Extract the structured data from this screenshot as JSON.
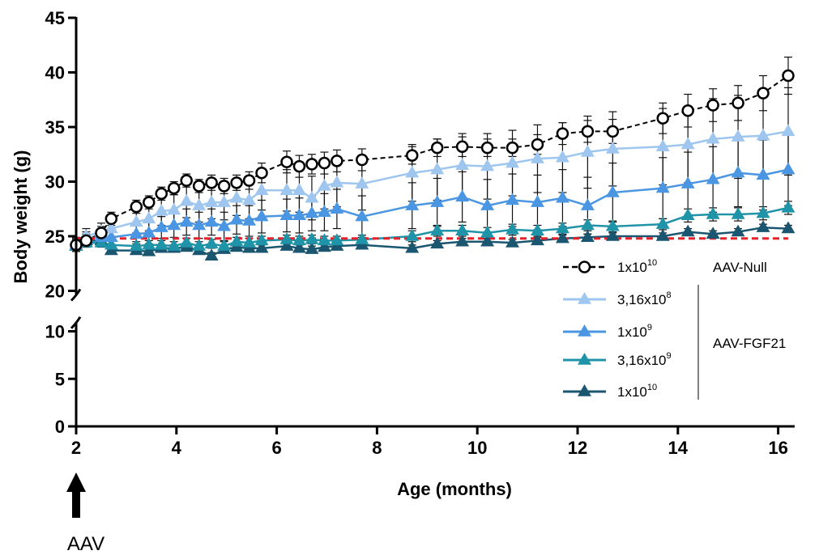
{
  "chart_data": {
    "type": "line",
    "xlabel": "Age (months)",
    "ylabel": "Body weight (g)",
    "xlim": [
      2,
      16.5
    ],
    "x_ticks": [
      "2",
      "4",
      "6",
      "8",
      "10",
      "12",
      "14",
      "16"
    ],
    "y_ticks_lower": [
      "0",
      "5",
      "10"
    ],
    "y_ticks_upper": [
      "20",
      "25",
      "30",
      "35",
      "40",
      "45"
    ],
    "ylim_lower": [
      0,
      11
    ],
    "ylim_upper": [
      20,
      45
    ],
    "y_axis_break": [
      11,
      20
    ],
    "grid": false,
    "legend": {
      "placement": "bottom-right",
      "groups": [
        {
          "label": "AAV-Null",
          "entries": [
            0
          ]
        },
        {
          "label": "AAV-FGF21",
          "entries": [
            1,
            2,
            3,
            4
          ]
        }
      ]
    },
    "annotation": {
      "text": "AAV",
      "at_x": 2,
      "marker": "up-arrow"
    },
    "baseline": {
      "y": 24.8,
      "color": "#e8202a",
      "style": "dashed"
    },
    "series": [
      {
        "name": "1x10^10",
        "name_base": "1x10",
        "name_exp": "10",
        "color": "#000000",
        "marker": "circle-open",
        "dash": "dashed",
        "x": [
          2,
          2.2,
          2.5,
          2.7,
          3.2,
          3.45,
          3.7,
          3.95,
          4.2,
          4.45,
          4.7,
          4.95,
          5.2,
          5.45,
          5.7,
          6.2,
          6.45,
          6.7,
          6.95,
          7.2,
          7.7,
          8.7,
          9.2,
          9.7,
          10.2,
          10.7,
          11.2,
          11.7,
          12.2,
          12.7,
          13.7,
          14.2,
          14.7,
          15.2,
          15.7,
          16.2
        ],
        "y": [
          24.2,
          24.6,
          25.3,
          26.6,
          27.7,
          28.1,
          28.9,
          29.4,
          30.1,
          29.6,
          29.9,
          29.6,
          29.9,
          30.1,
          30.8,
          31.8,
          31.4,
          31.6,
          31.7,
          31.9,
          32.0,
          32.4,
          33.1,
          33.2,
          33.1,
          33.1,
          33.4,
          34.4,
          34.6,
          34.6,
          35.8,
          36.5,
          37.0,
          37.2,
          38.1,
          39.7
        ],
        "err": [
          0.6,
          0.6,
          0.6,
          0.6,
          0.6,
          0.6,
          0.6,
          0.6,
          0.6,
          0.6,
          0.7,
          0.7,
          0.7,
          0.8,
          0.9,
          1.0,
          1.0,
          0.9,
          1.0,
          1.0,
          1.0,
          0.8,
          0.8,
          0.9,
          0.8,
          0.8,
          0.9,
          1.0,
          1.0,
          1.1,
          1.4,
          1.5,
          1.5,
          1.6,
          1.6,
          1.7
        ]
      },
      {
        "name": "3,16x10^8",
        "name_base": "3,16x10",
        "name_exp": "8",
        "color": "#9ec6ef",
        "marker": "triangle",
        "dash": "solid",
        "x": [
          2,
          2.2,
          2.5,
          2.7,
          3.2,
          3.45,
          3.7,
          3.95,
          4.2,
          4.45,
          4.7,
          4.95,
          5.2,
          5.45,
          5.7,
          6.2,
          6.45,
          6.7,
          6.95,
          7.2,
          7.7,
          8.7,
          9.2,
          9.7,
          10.2,
          10.7,
          11.2,
          11.7,
          12.2,
          12.7,
          13.7,
          14.2,
          14.7,
          15.2,
          15.7,
          16.2
        ],
        "y": [
          24.3,
          25.0,
          25.4,
          25.7,
          26.3,
          26.6,
          27.3,
          27.4,
          28.2,
          27.8,
          28.1,
          28.1,
          28.5,
          28.3,
          29.2,
          29.2,
          29.2,
          28.5,
          29.6,
          29.9,
          29.8,
          30.8,
          31.1,
          31.5,
          31.4,
          31.7,
          32.1,
          32.2,
          32.7,
          33.0,
          33.2,
          33.4,
          33.9,
          34.1,
          34.2,
          34.6
        ],
        "err": [
          0.6,
          0.7,
          0.8,
          0.9,
          1.0,
          1.1,
          1.3,
          1.4,
          1.5,
          1.5,
          1.5,
          1.6,
          1.6,
          1.7,
          1.8,
          1.9,
          2.0,
          2.0,
          2.1,
          2.2,
          2.4,
          2.6,
          2.8,
          2.9,
          3.0,
          3.0,
          3.1,
          3.2,
          3.3,
          3.4,
          3.5,
          3.5,
          3.7,
          3.8,
          3.9,
          4.0
        ]
      },
      {
        "name": "1x10^9",
        "name_base": "1x10",
        "name_exp": "9",
        "color": "#4a96e2",
        "marker": "triangle",
        "dash": "solid",
        "x": [
          2,
          2.2,
          2.5,
          2.7,
          3.2,
          3.45,
          3.7,
          3.95,
          4.2,
          4.45,
          4.7,
          4.95,
          5.2,
          5.45,
          5.7,
          6.2,
          6.45,
          6.7,
          6.95,
          7.2,
          7.7,
          8.7,
          9.2,
          9.7,
          10.2,
          10.7,
          11.2,
          11.7,
          12.2,
          12.7,
          13.7,
          14.2,
          14.7,
          15.2,
          15.7,
          16.2
        ],
        "y": [
          24.2,
          24.8,
          24.9,
          24.9,
          25.2,
          25.3,
          25.8,
          26.0,
          26.3,
          26.0,
          26.3,
          25.9,
          26.5,
          26.4,
          26.8,
          26.9,
          26.9,
          27.1,
          27.2,
          27.5,
          26.8,
          27.8,
          28.1,
          28.6,
          27.8,
          28.3,
          28.1,
          28.5,
          27.8,
          29.0,
          29.4,
          29.8,
          30.2,
          30.8,
          30.6,
          31.1
        ],
        "err": [
          0.5,
          0.6,
          0.7,
          0.8,
          0.9,
          1.0,
          1.0,
          1.1,
          1.2,
          1.2,
          1.2,
          1.3,
          1.3,
          1.4,
          1.5,
          1.5,
          1.6,
          1.6,
          1.7,
          1.8,
          1.9,
          2.1,
          2.2,
          2.3,
          2.4,
          2.4,
          2.5,
          2.6,
          2.6,
          2.7,
          2.8,
          2.9,
          3.0,
          3.1,
          3.2,
          3.3
        ]
      },
      {
        "name": "3,16x10^9",
        "name_base": "3,16x10",
        "name_exp": "9",
        "color": "#1f93a8",
        "marker": "triangle",
        "dash": "solid",
        "x": [
          2,
          2.2,
          2.5,
          2.7,
          3.2,
          3.45,
          3.7,
          3.95,
          4.2,
          4.45,
          4.7,
          4.95,
          5.2,
          5.45,
          5.7,
          6.2,
          6.45,
          6.7,
          6.95,
          7.2,
          7.7,
          8.7,
          9.2,
          9.7,
          10.2,
          10.7,
          11.2,
          11.7,
          12.2,
          12.7,
          13.7,
          14.2,
          14.7,
          15.2,
          15.7,
          16.2
        ],
        "y": [
          24.1,
          24.4,
          24.4,
          24.2,
          24.1,
          24.2,
          24.2,
          24.1,
          24.4,
          24.1,
          24.3,
          24.1,
          24.5,
          24.4,
          24.6,
          24.7,
          24.6,
          24.7,
          24.6,
          24.6,
          24.7,
          25.0,
          25.5,
          25.5,
          25.3,
          25.6,
          25.5,
          25.7,
          26.0,
          25.9,
          26.1,
          26.9,
          27.0,
          27.0,
          27.1,
          27.6
        ],
        "err": [
          0.4,
          0.4,
          0.4,
          0.4,
          0.4,
          0.4,
          0.4,
          0.4,
          0.4,
          0.4,
          0.4,
          0.4,
          0.4,
          0.4,
          0.4,
          0.4,
          0.4,
          0.4,
          0.4,
          0.4,
          0.4,
          0.5,
          0.5,
          0.5,
          0.5,
          0.5,
          0.5,
          0.5,
          0.5,
          0.5,
          0.5,
          0.6,
          0.6,
          0.6,
          0.6,
          0.6
        ]
      },
      {
        "name": "1x10^10",
        "name_base": "1x10",
        "name_exp": "10",
        "color": "#1a5670",
        "marker": "triangle",
        "dash": "solid",
        "x": [
          2,
          2.2,
          2.5,
          2.7,
          3.2,
          3.45,
          3.7,
          3.95,
          4.2,
          4.45,
          4.7,
          4.95,
          5.2,
          5.45,
          5.7,
          6.2,
          6.45,
          6.7,
          6.95,
          7.2,
          7.7,
          8.7,
          9.2,
          9.7,
          10.2,
          10.7,
          11.2,
          11.7,
          12.2,
          12.7,
          13.7,
          14.2,
          14.7,
          15.2,
          15.7,
          16.2
        ],
        "y": [
          24.1,
          24.6,
          24.6,
          23.7,
          23.7,
          23.6,
          23.9,
          23.9,
          24.0,
          23.7,
          23.2,
          23.8,
          24.0,
          23.9,
          23.9,
          24.1,
          23.9,
          23.8,
          24.0,
          24.1,
          24.2,
          23.9,
          24.3,
          24.5,
          24.5,
          24.4,
          24.6,
          24.8,
          24.9,
          25.0,
          25.0,
          25.4,
          25.2,
          25.4,
          25.8,
          25.7
        ],
        "err": [
          0.3,
          0.3,
          0.3,
          0.3,
          0.3,
          0.3,
          0.3,
          0.3,
          0.3,
          0.3,
          0.3,
          0.3,
          0.3,
          0.3,
          0.3,
          0.3,
          0.3,
          0.3,
          0.3,
          0.3,
          0.3,
          0.3,
          0.3,
          0.3,
          0.3,
          0.3,
          0.3,
          0.3,
          0.3,
          0.3,
          0.3,
          0.3,
          0.3,
          0.3,
          0.3,
          0.3
        ]
      }
    ]
  }
}
